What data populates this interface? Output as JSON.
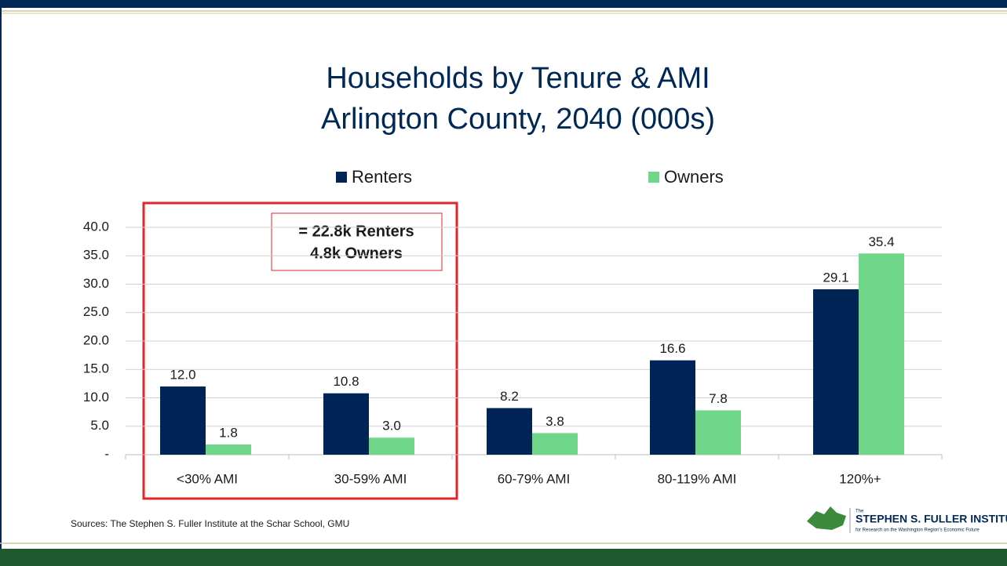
{
  "chart_data": {
    "type": "bar",
    "title": "Households by Tenure & AMI",
    "subtitle": "Arlington County, 2040 (000s)",
    "categories": [
      "<30% AMI",
      "30-59% AMI",
      "60-79% AMI",
      "80-119% AMI",
      "120%+"
    ],
    "series": [
      {
        "name": "Renters",
        "color": "#002456",
        "values": [
          12.0,
          10.8,
          8.2,
          16.6,
          29.1
        ],
        "value_labels": [
          "12.0",
          "10.8",
          "8.2",
          "16.6",
          "29.1"
        ]
      },
      {
        "name": "Owners",
        "color": "#6fd68a",
        "values": [
          1.8,
          3.0,
          3.8,
          7.8,
          35.4
        ],
        "value_labels": [
          "1.8",
          "3.0",
          "3.8",
          "7.8",
          "35.4"
        ]
      }
    ],
    "ylim": [
      0,
      40
    ],
    "yticks": [
      {
        "value": 0,
        "label": "-"
      },
      {
        "value": 5,
        "label": "5.0"
      },
      {
        "value": 10,
        "label": "10.0"
      },
      {
        "value": 15,
        "label": "15.0"
      },
      {
        "value": 20,
        "label": "20.0"
      },
      {
        "value": 25,
        "label": "25.0"
      },
      {
        "value": 30,
        "label": "30.0"
      },
      {
        "value": 35,
        "label": "35.0"
      },
      {
        "value": 40,
        "label": "40.0"
      }
    ],
    "grid": true,
    "legend": "top",
    "annotation": [
      "= 22.8k Renters",
      "4.8k Owners"
    ],
    "source": "Sources: The Stephen S. Fuller Institute at the Schar School, GMU"
  },
  "logo": {
    "small": "The",
    "name": "STEPHEN S. FULLER INSTITUTE",
    "tagline": "for Research on the Washington Region's Economic Future"
  }
}
